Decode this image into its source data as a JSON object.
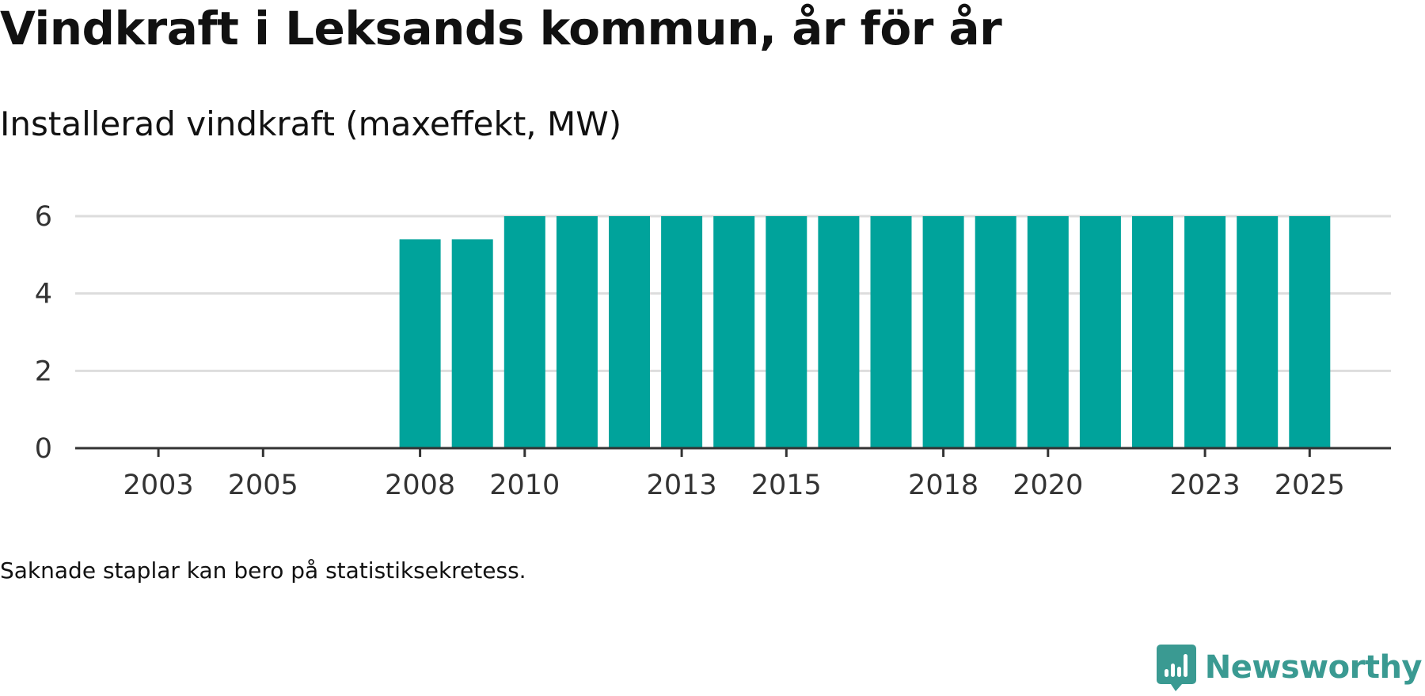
{
  "header": {
    "title": "Vindkraft i Leksands kommun, år för år",
    "subtitle": "Installerad vindkraft (maxeffekt, MW)"
  },
  "footer": {
    "note": "Saknade staplar kan bero på statistiksekretess.",
    "brand": "Newsworthy",
    "brand_icon": "newsworthy-logo-icon"
  },
  "colors": {
    "bar": "#00a39b",
    "brand": "#3a9a92",
    "grid": "#dddddd",
    "axis": "#333333",
    "tick_text": "#333333"
  },
  "chart_data": {
    "type": "bar",
    "title": "Vindkraft i Leksands kommun, år för år",
    "subtitle": "Installerad vindkraft (maxeffekt, MW)",
    "xlabel": "",
    "ylabel": "",
    "categories": [
      2002,
      2003,
      2004,
      2005,
      2006,
      2007,
      2008,
      2009,
      2010,
      2011,
      2012,
      2013,
      2014,
      2015,
      2016,
      2017,
      2018,
      2019,
      2020,
      2021,
      2022,
      2023,
      2024,
      2025
    ],
    "values": [
      null,
      null,
      null,
      null,
      null,
      null,
      5.4,
      5.4,
      6,
      6,
      6,
      6,
      6,
      6,
      6,
      6,
      6,
      6,
      6,
      6,
      6,
      6,
      6,
      6
    ],
    "x_tick_labels": [
      "2003",
      "2005",
      "2008",
      "2010",
      "2013",
      "2015",
      "2018",
      "2020",
      "2023",
      "2025"
    ],
    "y_ticks": [
      0,
      2,
      4,
      6
    ],
    "ylim": [
      0,
      6
    ],
    "grid": true,
    "legend": "none"
  }
}
